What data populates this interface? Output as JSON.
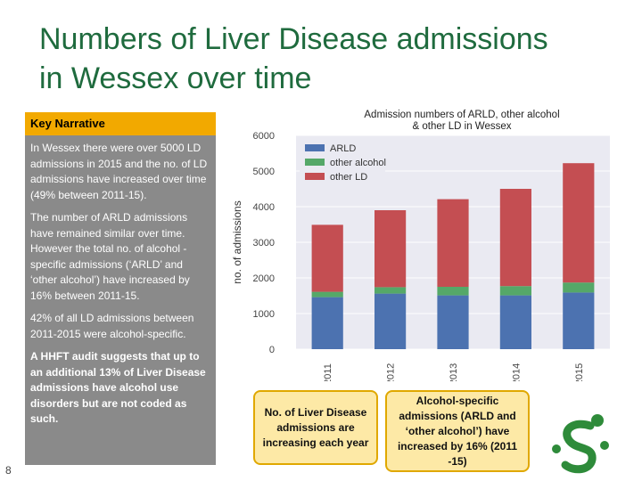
{
  "slide": {
    "title_line1": "Numbers of Liver Disease admissions",
    "title_line2": "in Wessex over time",
    "page_number": "8"
  },
  "narrative": {
    "heading": "Key Narrative",
    "paragraphs": [
      "In Wessex there were over 5000 LD admissions in 2015 and the no. of LD admissions have increased over time (49% between 2011-15).",
      "The number of ARLD admissions have remained similar over time. However the total no. of alcohol - specific admissions (‘ARLD’ and ‘other alcohol’) have increased by 16% between 2011-15.",
      "42% of all LD admissions between 2011-2015 were alcohol-specific.",
      "A HHFT audit suggests that up to an additional 13% of Liver Disease admissions have alcohol use disorders but are not coded as such."
    ]
  },
  "callouts": {
    "left": "No. of Liver Disease admissions are increasing each year",
    "right": "Alcohol-specific admissions (ARLD and ‘other alcohol’) have increased by 16% (2011 -15)"
  },
  "colors": {
    "arld": "#4c72b0",
    "other_alcohol": "#55a868",
    "other_ld": "#c44e52",
    "plot_bg": "#eaeaf2",
    "title_green": "#1f6b3e",
    "logo_green": "#2e8b3a"
  },
  "logo": {
    "icon": "s-figure-logo-icon"
  },
  "chart_data": {
    "type": "bar",
    "stacked": true,
    "title": "Admission numbers of ARLD, other alcohol & other LD in Wessex",
    "title_lines": [
      "Admission numbers of ARLD, other alcohol",
      "& other LD in Wessex"
    ],
    "xlabel": "",
    "ylabel": "no. of admissions",
    "categories": [
      "2011",
      "2012",
      "2013",
      "2014",
      "2015"
    ],
    "series": [
      {
        "name": "ARLD",
        "values": [
          1460,
          1560,
          1510,
          1510,
          1590
        ],
        "color": "#4c72b0"
      },
      {
        "name": "other alcohol",
        "values": [
          150,
          180,
          240,
          260,
          280
        ],
        "color": "#55a868"
      },
      {
        "name": "other LD",
        "values": [
          1880,
          2160,
          2460,
          2730,
          3350
        ],
        "color": "#c44e52"
      }
    ],
    "ylim": [
      0,
      6000
    ],
    "yticks": [
      0,
      1000,
      2000,
      3000,
      4000,
      5000,
      6000
    ],
    "grid": true,
    "legend": "top-left"
  }
}
